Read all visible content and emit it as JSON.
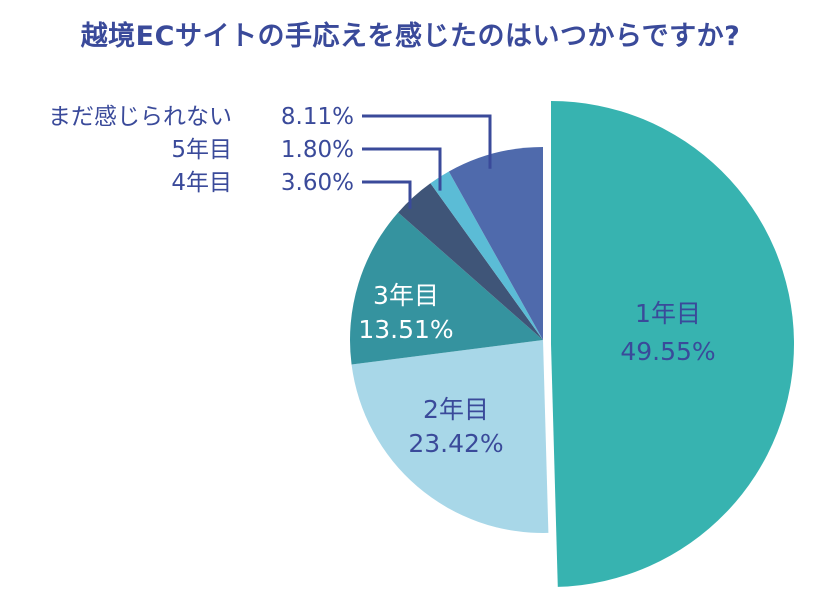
{
  "chart_data": {
    "type": "pie",
    "title": "越境ECサイトの手応えを感じたのはいつからですか?",
    "slices": [
      {
        "label": "1年目",
        "value": 49.55,
        "value_text": "49.55%",
        "color": "#37b3b0"
      },
      {
        "label": "2年目",
        "value": 23.42,
        "value_text": "23.42%",
        "color": "#a8d7e8"
      },
      {
        "label": "3年目",
        "value": 13.51,
        "value_text": "13.51%",
        "color": "#35939f"
      },
      {
        "label": "4年目",
        "value": 3.6,
        "value_text": "3.60%",
        "color": "#3f5578"
      },
      {
        "label": "5年目",
        "value": 1.8,
        "value_text": "1.80%",
        "color": "#5bbcd6"
      },
      {
        "label": "まだ感じられない",
        "value": 8.11,
        "value_text": "8.11%",
        "color": "#4f6aac"
      }
    ],
    "start_angle_deg": 0,
    "direction": "clockwise",
    "exploded_slice": "1年目",
    "inner_label_slices": [
      "1年目",
      "2年目",
      "3年目"
    ],
    "callout_label_slices": [
      "まだ感じられない",
      "5年目",
      "4年目"
    ],
    "colors": {
      "title": "#3a4a9a",
      "label_dark": "#3a4a9a",
      "label_light": "#ffffff",
      "leader_line": "#3a4a9a"
    }
  }
}
